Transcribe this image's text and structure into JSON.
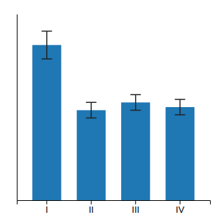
{
  "chart_data": {
    "type": "bar",
    "categories": [
      "I",
      "II",
      "III",
      "IV"
    ],
    "values": [
      100,
      58,
      63,
      60
    ],
    "errors": [
      9,
      5,
      5,
      5
    ],
    "ylim": [
      0,
      120
    ],
    "tick_labels": "x"
  }
}
